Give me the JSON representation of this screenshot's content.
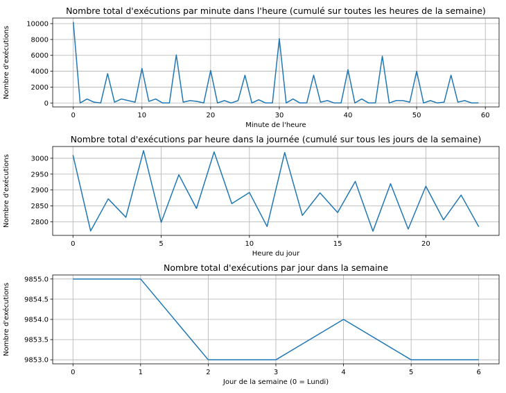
{
  "chart_data": [
    {
      "type": "line",
      "title": "Nombre total d'exécutions par minute dans l'heure (cumulé sur toutes les heures de la semaine)",
      "xlabel": "Minute de l'heure",
      "ylabel": "Nombre d'exécutions",
      "xlim": [
        -3,
        62
      ],
      "ylim": [
        -500,
        10700
      ],
      "xticks": [
        0,
        10,
        20,
        30,
        40,
        50,
        60
      ],
      "xtick_labels": [
        "0",
        "10",
        "20",
        "30",
        "40",
        "50",
        "60"
      ],
      "yticks": [
        0,
        2000,
        4000,
        6000,
        8000,
        10000
      ],
      "ytick_labels": [
        "0",
        "2000",
        "4000",
        "6000",
        "8000",
        "10000"
      ],
      "grid": true,
      "color": "#1f77b4",
      "x": [
        0,
        1,
        2,
        3,
        4,
        5,
        6,
        7,
        8,
        9,
        10,
        11,
        12,
        13,
        14,
        15,
        16,
        17,
        18,
        19,
        20,
        21,
        22,
        23,
        24,
        25,
        26,
        27,
        28,
        29,
        30,
        31,
        32,
        33,
        34,
        35,
        36,
        37,
        38,
        39,
        40,
        41,
        42,
        43,
        44,
        45,
        46,
        47,
        48,
        49,
        50,
        51,
        52,
        53,
        54,
        55,
        56,
        57,
        58,
        59
      ],
      "values": [
        10200,
        0,
        500,
        100,
        0,
        3700,
        100,
        500,
        300,
        100,
        4350,
        200,
        500,
        0,
        0,
        6050,
        100,
        300,
        200,
        0,
        4100,
        0,
        300,
        0,
        300,
        3500,
        0,
        400,
        0,
        0,
        8100,
        0,
        500,
        0,
        0,
        3500,
        100,
        300,
        0,
        0,
        4200,
        0,
        500,
        0,
        0,
        5900,
        0,
        300,
        300,
        100,
        4000,
        0,
        300,
        0,
        100,
        3500,
        100,
        300,
        0,
        0
      ]
    },
    {
      "type": "line",
      "title": "Nombre total d'exécutions par heure dans la journée (cumulé sur tous les jours de la semaine)",
      "xlabel": "Heure du jour",
      "ylabel": "Nombre d'exécutions",
      "xlim": [
        -1.15,
        24.15
      ],
      "ylim": [
        2757,
        3037
      ],
      "xticks": [
        0,
        5,
        10,
        15,
        20
      ],
      "xtick_labels": [
        "0",
        "5",
        "10",
        "15",
        "20"
      ],
      "yticks": [
        2800,
        2850,
        2900,
        2950,
        3000
      ],
      "ytick_labels": [
        "2800",
        "2850",
        "2900",
        "2950",
        "3000"
      ],
      "grid": true,
      "color": "#1f77b4",
      "x": [
        0,
        1,
        2,
        3,
        4,
        5,
        6,
        7,
        8,
        9,
        10,
        11,
        12,
        13,
        14,
        15,
        16,
        17,
        18,
        19,
        20,
        21,
        22,
        23
      ],
      "values": [
        3010,
        2771,
        2872,
        2814,
        3024,
        2798,
        2948,
        2842,
        3020,
        2857,
        2892,
        2785,
        3018,
        2820,
        2891,
        2829,
        2927,
        2770,
        2920,
        2777,
        2912,
        2806,
        2884,
        2784
      ]
    },
    {
      "type": "line",
      "title": "Nombre total d'exécutions par jour dans la semaine",
      "xlabel": "Jour de la semaine (0 = Lundi)",
      "ylabel": "Nombre d'exécutions",
      "xlim": [
        -0.3,
        6.3
      ],
      "ylim": [
        9852.9,
        9855.1
      ],
      "xticks": [
        0,
        1,
        2,
        3,
        4,
        5,
        6
      ],
      "xtick_labels": [
        "0",
        "1",
        "2",
        "3",
        "4",
        "5",
        "6"
      ],
      "yticks": [
        9853.0,
        9853.5,
        9854.0,
        9854.5,
        9855.0
      ],
      "ytick_labels": [
        "9853.0",
        "9853.5",
        "9854.0",
        "9854.5",
        "9855.0"
      ],
      "grid": true,
      "color": "#1f77b4",
      "x": [
        0,
        1,
        2,
        3,
        4,
        5,
        6
      ],
      "values": [
        9855,
        9855,
        9853,
        9853,
        9854,
        9853,
        9853
      ]
    }
  ]
}
